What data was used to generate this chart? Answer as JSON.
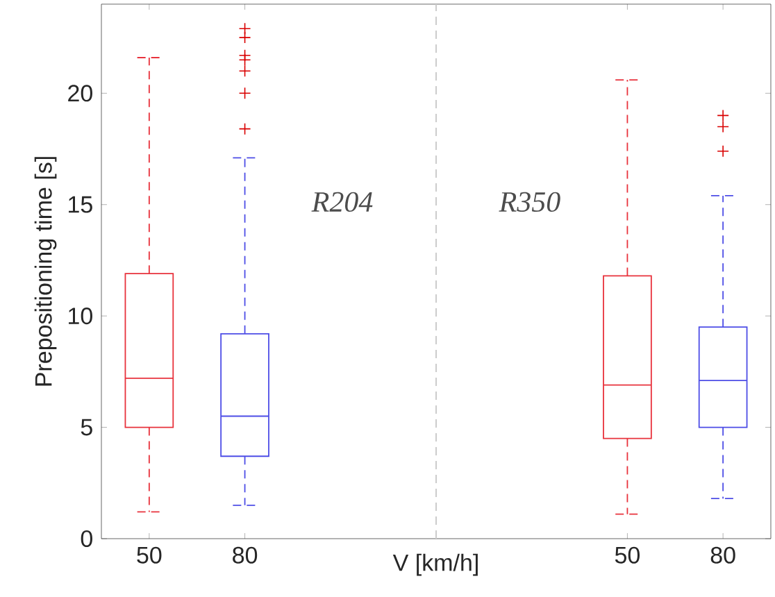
{
  "chart_data": {
    "type": "box",
    "ylabel": "Prepositioning time [s]",
    "xlabel": "V [km/h]",
    "categories": [
      "50",
      "80",
      null,
      null,
      null,
      "50",
      "80"
    ],
    "ylim": [
      0,
      24
    ],
    "yticks": [
      0,
      5,
      10,
      15,
      20
    ],
    "series": [
      {
        "color": "#e8323c",
        "boxes": [
          {
            "low": 1.2,
            "q1": 5.0,
            "median": 7.2,
            "q3": 11.9,
            "high": 21.6
          },
          null,
          null,
          null,
          null,
          {
            "low": 1.1,
            "q1": 4.5,
            "median": 6.9,
            "q3": 11.8,
            "high": 20.6
          },
          null
        ]
      },
      {
        "color": "#4d4de6",
        "boxes": [
          null,
          {
            "low": 1.5,
            "q1": 3.7,
            "median": 5.5,
            "q3": 9.2,
            "high": 17.1,
            "outliers": [
              18.4,
              20.0,
              21.0,
              21.5,
              21.7,
              22.5,
              22.9
            ]
          },
          null,
          null,
          null,
          null,
          {
            "low": 1.8,
            "q1": 5.0,
            "median": 7.1,
            "q3": 9.5,
            "high": 15.4,
            "outliers": [
              17.4,
              18.5,
              19.0
            ]
          }
        ]
      }
    ],
    "annotations": [
      "R204",
      "R350"
    ]
  }
}
